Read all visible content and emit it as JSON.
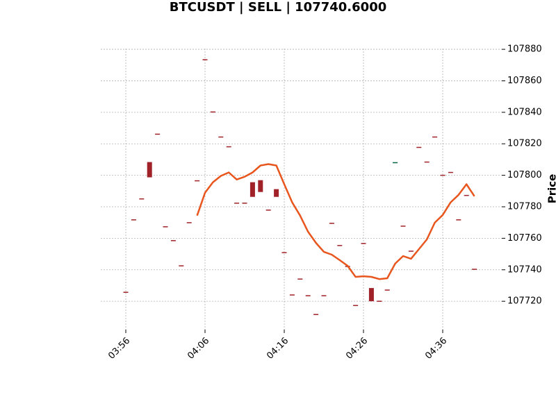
{
  "chart_data": {
    "type": "candlestick",
    "title": "BTCUSDT | SELL | 107740.6000",
    "y_label": "Price",
    "categories": [
      "03:56",
      null,
      null,
      null,
      null,
      null,
      null,
      null,
      null,
      null,
      "04:06",
      null,
      null,
      null,
      null,
      null,
      null,
      null,
      null,
      null,
      "04:16",
      null,
      null,
      null,
      null,
      null,
      null,
      null,
      null,
      null,
      "04:26",
      null,
      null,
      null,
      null,
      null,
      null,
      null,
      null,
      null,
      "04:36",
      null,
      null,
      null,
      null
    ],
    "open": [
      107725.7,
      107771.7,
      107785.0,
      107808.4,
      107826.1,
      107767.3,
      107758.5,
      107742.5,
      107769.9,
      107796.5,
      107873.4,
      107840.2,
      107824.3,
      107818.1,
      107782.3,
      107782.3,
      107795.6,
      107796.9,
      107777.9,
      107791.2,
      107750.9,
      107724.0,
      107734.1,
      107723.5,
      107711.6,
      107723.5,
      107769.5,
      107755.4,
      107742.1,
      107717.3,
      107756.7,
      107728.4,
      107720.0,
      107727.1,
      107807.6,
      107767.7,
      107751.8,
      107817.7,
      107808.4,
      107824.3,
      107800.0,
      107801.8,
      107771.7,
      107787.2,
      107740.3
    ],
    "close": [
      107725.7,
      107771.7,
      107785.0,
      107798.7,
      107826.1,
      107767.3,
      107758.5,
      107742.5,
      107769.9,
      107796.5,
      107873.4,
      107840.2,
      107824.3,
      107818.1,
      107782.3,
      107782.3,
      107786.3,
      107789.4,
      107777.9,
      107786.3,
      107750.9,
      107724.0,
      107734.1,
      107723.5,
      107711.6,
      107723.5,
      107769.5,
      107755.4,
      107742.1,
      107717.3,
      107756.7,
      107720.0,
      107720.0,
      107727.1,
      107808.0,
      107767.7,
      107751.8,
      107817.7,
      107808.4,
      107824.3,
      107800.0,
      107801.8,
      107771.7,
      107787.2,
      107740.3
    ],
    "up_color": "#006340",
    "down_color": "#a02128",
    "line": {
      "color": "#e8561e",
      "values": [
        null,
        null,
        null,
        null,
        null,
        null,
        null,
        null,
        null,
        107774.4,
        107788.9,
        107795.6,
        107799.6,
        107801.8,
        107797.3,
        107799.1,
        107801.8,
        107806.2,
        107807.1,
        107806.2,
        107794.3,
        107782.8,
        107774.4,
        107764.2,
        107757.1,
        107751.4,
        107749.6,
        107746.1,
        107742.5,
        107735.5,
        107735.9,
        107735.5,
        107734.1,
        107734.6,
        107743.9,
        107748.7,
        107747.0,
        107753.1,
        107759.3,
        107769.9,
        107774.8,
        107782.8,
        107787.6,
        107794.3,
        107786.7
      ]
    },
    "ylim": [
      107702,
      107884
    ],
    "yticks": [
      107720,
      107740,
      107760,
      107780,
      107800,
      107820,
      107840,
      107860,
      107880
    ],
    "grid": true
  }
}
